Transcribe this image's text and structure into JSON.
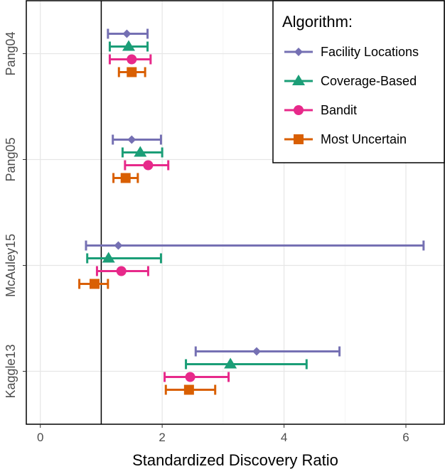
{
  "chart_data": {
    "type": "errorbar",
    "title": "",
    "xlabel": "Standardized Discovery Ratio",
    "ylabel": "",
    "xlim": [
      -0.23,
      6.63
    ],
    "xticks": [
      0,
      2,
      4,
      6
    ],
    "reference_line": 1,
    "categories": [
      "Pang04",
      "Pang05",
      "McAuley15",
      "Kaggle13"
    ],
    "legend": {
      "title": "Algorithm:",
      "position": "top-right"
    },
    "series": [
      {
        "name": "Facility Locations",
        "color": "#7570B3",
        "shape": "diamond",
        "values": [
          1.42,
          1.5,
          1.28,
          3.55
        ],
        "lower": [
          1.11,
          1.19,
          0.75,
          2.55
        ],
        "upper": [
          1.76,
          1.98,
          6.29,
          4.91
        ]
      },
      {
        "name": "Coverage-Based",
        "color": "#1B9E77",
        "shape": "triangle",
        "values": [
          1.45,
          1.64,
          1.12,
          3.12
        ],
        "lower": [
          1.14,
          1.35,
          0.77,
          2.39
        ],
        "upper": [
          1.76,
          2.0,
          1.98,
          4.37
        ]
      },
      {
        "name": "Bandit",
        "color": "#E7298A",
        "shape": "circle",
        "values": [
          1.5,
          1.77,
          1.33,
          2.46
        ],
        "lower": [
          1.14,
          1.39,
          0.93,
          2.04
        ],
        "upper": [
          1.81,
          2.1,
          1.77,
          3.09
        ]
      },
      {
        "name": "Most Uncertain",
        "color": "#D95F02",
        "shape": "square",
        "values": [
          1.5,
          1.4,
          0.89,
          2.44
        ],
        "lower": [
          1.29,
          1.2,
          0.64,
          2.06
        ],
        "upper": [
          1.72,
          1.6,
          1.11,
          2.87
        ]
      }
    ]
  }
}
